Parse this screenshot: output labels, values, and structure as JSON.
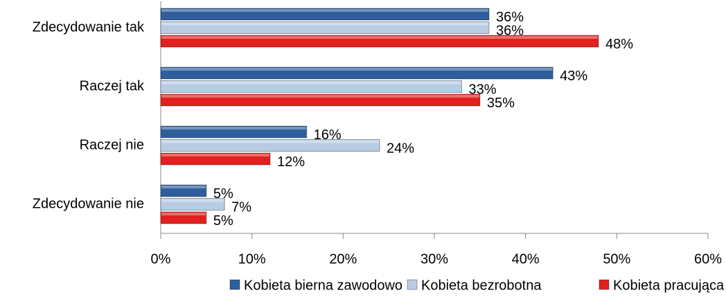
{
  "chart_data": {
    "type": "hbar",
    "categories": [
      "Zdecydowanie tak",
      "Raczej tak",
      "Raczej nie",
      "Zdecydowanie nie"
    ],
    "series": [
      {
        "name": "Kobieta bierna zawodowo",
        "color": "#2f5e9c",
        "values": [
          36,
          43,
          16,
          5
        ],
        "value_labels": [
          "36%",
          "43%",
          "16%",
          "5%"
        ]
      },
      {
        "name": "Kobieta bezrobotna",
        "color": "#b8cce4",
        "values": [
          36,
          33,
          24,
          7
        ],
        "value_labels": [
          "36%",
          "33%",
          "24%",
          "7%"
        ]
      },
      {
        "name": "Kobieta pracująca",
        "color": "#e2201f",
        "values": [
          48,
          35,
          12,
          5
        ],
        "value_labels": [
          "48%",
          "35%",
          "12%",
          "5%"
        ]
      }
    ],
    "xlim": [
      0,
      60
    ],
    "xticks": [
      {
        "value": 0,
        "label": "0%"
      },
      {
        "value": 10,
        "label": "10%"
      },
      {
        "value": 20,
        "label": "20%"
      },
      {
        "value": 30,
        "label": "30%"
      },
      {
        "value": 40,
        "label": "40%"
      },
      {
        "value": 50,
        "label": "50%"
      },
      {
        "value": 60,
        "label": "60%"
      }
    ],
    "legend": "bottom"
  }
}
